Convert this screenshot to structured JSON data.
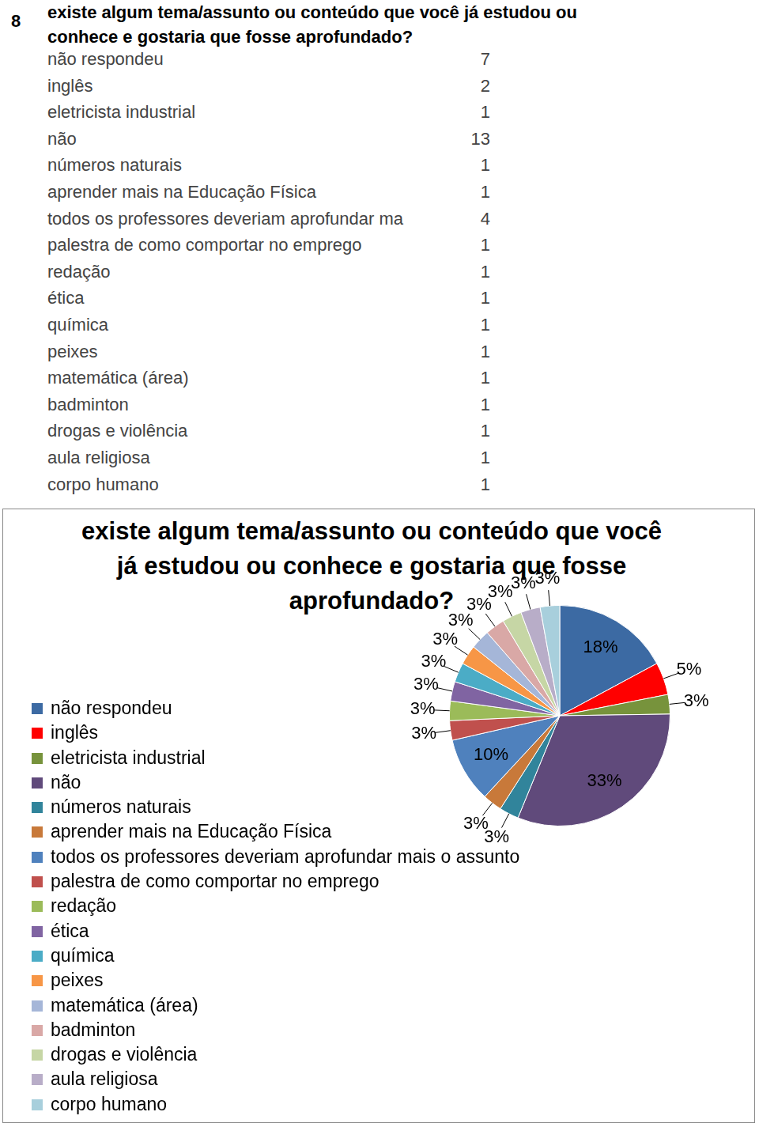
{
  "question_number": "8",
  "question": "existe algum tema/assunto ou conteúdo que você já estudou ou conhece e gostaria que fosse aprofundado?",
  "table": {
    "rows": [
      [
        "não respondeu",
        7
      ],
      [
        "inglês",
        2
      ],
      [
        "eletricista industrial",
        1
      ],
      [
        "não",
        13
      ],
      [
        "números naturais",
        1
      ],
      [
        "aprender mais na Educação Física",
        1
      ],
      [
        "todos os professores deveriam aprofundar ma",
        4
      ],
      [
        "palestra de como comportar no emprego",
        1
      ],
      [
        "redação",
        1
      ],
      [
        "ética",
        1
      ],
      [
        "química",
        1
      ],
      [
        "peixes",
        1
      ],
      [
        "matemática (área)",
        1
      ],
      [
        "badminton",
        1
      ],
      [
        "drogas e violência",
        1
      ],
      [
        "aula religiosa",
        1
      ],
      [
        "corpo humano",
        1
      ]
    ]
  },
  "chart_data": {
    "type": "pie",
    "title": "existe algum tema/assunto ou conteúdo que você já estudou ou conhece e gostaria que fosse aprofundado?",
    "categories": [
      "não respondeu",
      "inglês",
      "eletricista industrial",
      "não",
      "números naturais",
      "aprender mais na Educação Física",
      "todos os professores deveriam aprofundar mais o assunto",
      "palestra de como comportar no emprego",
      "redação",
      "ética",
      "química",
      "peixes",
      "matemática (área)",
      "badminton",
      "drogas e violência",
      "aula religiosa",
      "corpo humano"
    ],
    "values": [
      18,
      5,
      3,
      33,
      3,
      3,
      10,
      3,
      3,
      3,
      3,
      3,
      3,
      3,
      3,
      3,
      3
    ],
    "value_labels": [
      "18%",
      "5%",
      "3%",
      "33%",
      "3%",
      "3%",
      "10%",
      "3%",
      "3%",
      "3%",
      "3%",
      "3%",
      "3%",
      "3%",
      "3%",
      "3%",
      "3%"
    ],
    "colors": [
      "#3C6AA3",
      "#FF0000",
      "#77933C",
      "#604A7B",
      "#31849B",
      "#C8793A",
      "#4F81BD",
      "#C0504D",
      "#9BBB59",
      "#8064A2",
      "#4BACC6",
      "#F79646",
      "#A5B6D8",
      "#D9A8A6",
      "#C6D6A5",
      "#B8ADC8",
      "#A8CFDC"
    ],
    "data_labels": true,
    "legend": "left"
  }
}
